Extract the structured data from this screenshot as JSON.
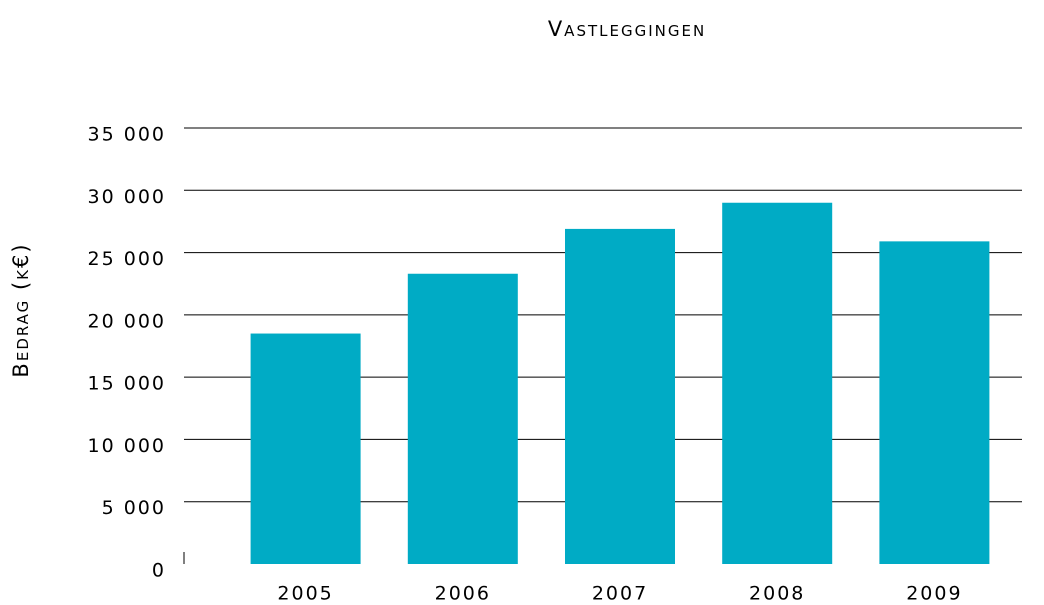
{
  "chart_data": {
    "type": "bar",
    "title": "Vastleggingen",
    "y_label": "Bedrag (k€)",
    "categories": [
      "2005",
      "2006",
      "2007",
      "2008",
      "2009"
    ],
    "values": [
      18500,
      23300,
      26900,
      29000,
      25900
    ],
    "color": "#00abc5",
    "ylim": [
      0,
      35000
    ],
    "yticks": [
      0,
      {
        "value": 5000,
        "label": "5 000"
      },
      {
        "value": 10000,
        "label": "10 000"
      },
      {
        "value": 15000,
        "label": "15 000"
      },
      {
        "value": 20000,
        "label": "20 000"
      },
      {
        "value": 25000,
        "label": "25 000"
      },
      {
        "value": 30000,
        "label": "30 000"
      },
      {
        "value": 35000,
        "label": "35 000"
      }
    ],
    "grid": true
  }
}
